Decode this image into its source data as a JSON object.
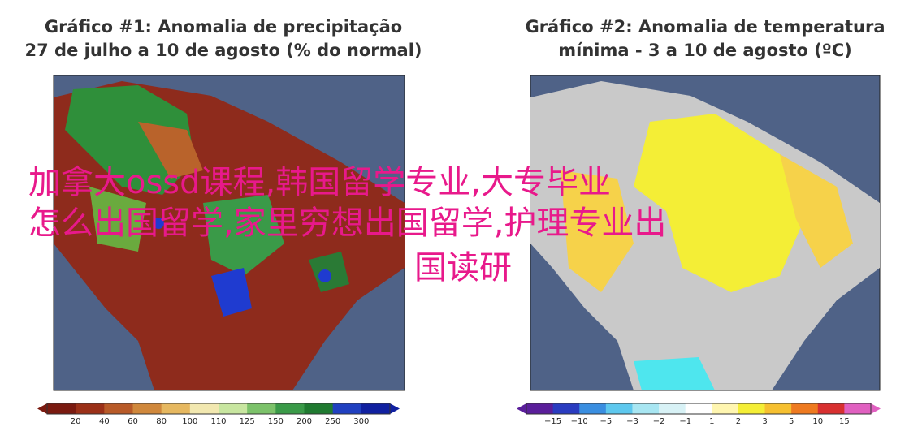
{
  "left_panel": {
    "title_line1": "Gráfico #1: Anomalia de precipitação",
    "title_line2": "27 de julho a 10 de agosto (% do normal)",
    "colorbar_labels": [
      "20",
      "40",
      "60",
      "80",
      "100",
      "110",
      "125",
      "150",
      "200",
      "250",
      "300"
    ]
  },
  "right_panel": {
    "title_line1": "Gráfico #2: Anomalia de temperatura",
    "title_line2": "mínima - 3 a 10 de agosto (ºC)",
    "colorbar_labels": [
      "−15",
      "−10",
      "−5",
      "−3",
      "−2",
      "−1",
      "1",
      "2",
      "3",
      "5",
      "10",
      "15"
    ]
  },
  "overlay": {
    "lines": [
      "加拿大ossd课程,韩国留学专业,大专毕业",
      "怎么出国留学,家里穷想出国留学,护理专业出",
      "国读研"
    ]
  }
}
